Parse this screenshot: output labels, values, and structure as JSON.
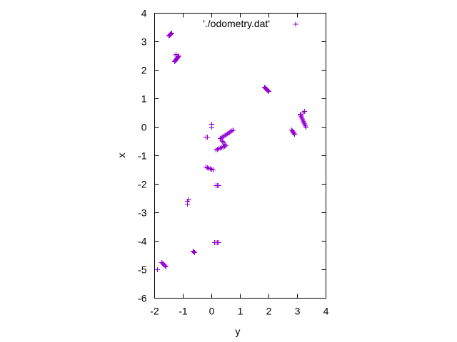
{
  "chart_data": {
    "type": "scatter",
    "xlabel": "y",
    "ylabel": "x",
    "xlim": [
      -2,
      4
    ],
    "ylim": [
      -6,
      4
    ],
    "x_ticks": [
      "-2",
      "-1",
      "0",
      "1",
      "2",
      "3",
      "4"
    ],
    "y_ticks": [
      "-6",
      "-5",
      "-4",
      "-3",
      "-2",
      "-1",
      "0",
      "1",
      "2",
      "3",
      "4"
    ],
    "grid": false,
    "legend_position": "top-right",
    "marker": "+",
    "series": [
      {
        "name": "'./odometry.dat'",
        "color": "#9400d3",
        "clusters": [
          {
            "from": [
              -1.5,
              3.2
            ],
            "to": [
              -1.4,
              3.3
            ],
            "n": 8
          },
          {
            "from": [
              -1.25,
              2.55
            ],
            "to": [
              -1.25,
              2.5
            ],
            "n": 2
          },
          {
            "from": [
              -1.3,
              2.3
            ],
            "to": [
              -1.15,
              2.5
            ],
            "n": 10
          },
          {
            "from": [
              1.85,
              1.4
            ],
            "to": [
              2.0,
              1.25
            ],
            "n": 8
          },
          {
            "from": [
              0.0,
              0.1
            ],
            "to": [
              0.0,
              0.0
            ],
            "n": 2
          },
          {
            "from": [
              -0.2,
              -0.35
            ],
            "to": [
              -0.15,
              -0.35
            ],
            "n": 2
          },
          {
            "from": [
              0.15,
              -0.8
            ],
            "to": [
              0.5,
              -0.65
            ],
            "n": 8
          },
          {
            "from": [
              0.5,
              -0.65
            ],
            "to": [
              0.3,
              -0.4
            ],
            "n": 6
          },
          {
            "from": [
              0.3,
              -0.4
            ],
            "to": [
              0.75,
              -0.1
            ],
            "n": 12
          },
          {
            "from": [
              -0.2,
              -1.4
            ],
            "to": [
              0.05,
              -1.5
            ],
            "n": 6
          },
          {
            "from": [
              0.15,
              -2.05
            ],
            "to": [
              0.25,
              -2.05
            ],
            "n": 3
          },
          {
            "from": [
              -0.85,
              -2.6
            ],
            "to": [
              -0.8,
              -2.55
            ],
            "n": 2
          },
          {
            "from": [
              -0.85,
              -2.7
            ],
            "to": [
              -0.85,
              -2.7
            ],
            "n": 1
          },
          {
            "from": [
              -0.65,
              -4.35
            ],
            "to": [
              -0.6,
              -4.4
            ],
            "n": 3
          },
          {
            "from": [
              0.1,
              -4.05
            ],
            "to": [
              0.25,
              -4.05
            ],
            "n": 4
          },
          {
            "from": [
              -1.75,
              -4.75
            ],
            "to": [
              -1.6,
              -4.9
            ],
            "n": 6
          },
          {
            "from": [
              -1.9,
              -5.0
            ],
            "to": [
              -1.9,
              -5.0
            ],
            "n": 1
          },
          {
            "from": [
              2.8,
              -0.1
            ],
            "to": [
              2.9,
              -0.25
            ],
            "n": 6
          },
          {
            "from": [
              3.1,
              0.45
            ],
            "to": [
              3.3,
              0.0
            ],
            "n": 12
          },
          {
            "from": [
              3.2,
              0.5
            ],
            "to": [
              3.25,
              0.55
            ],
            "n": 2
          }
        ]
      }
    ]
  }
}
